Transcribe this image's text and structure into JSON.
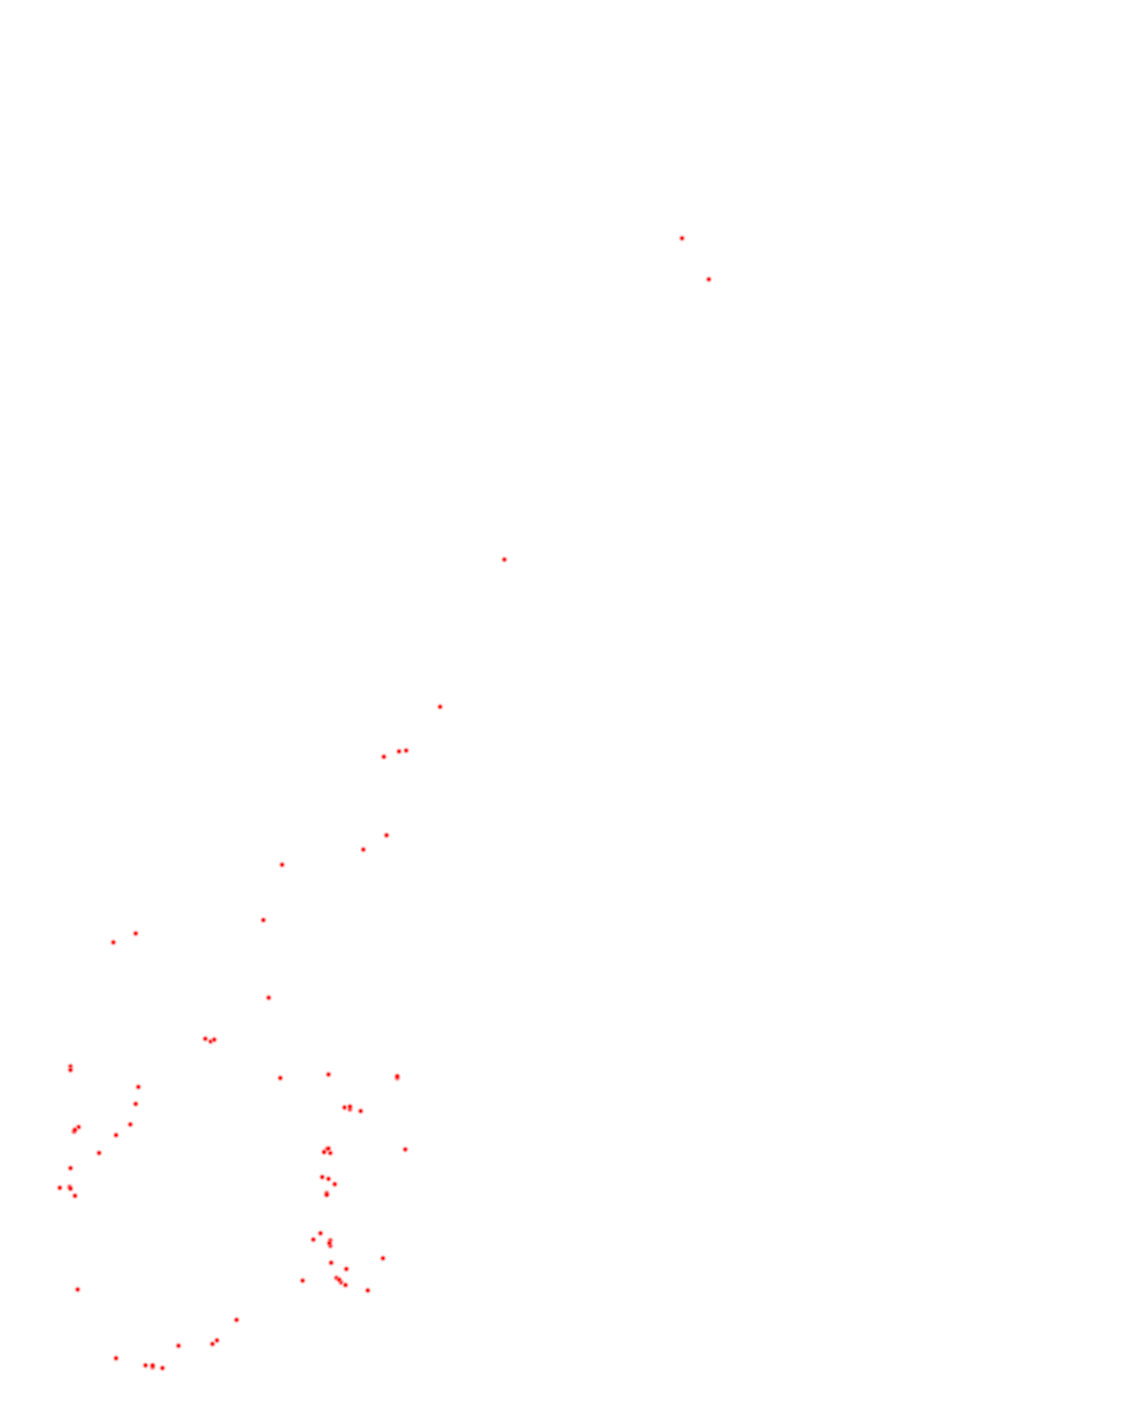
{
  "map": {
    "point_color": "#ff0000",
    "halo_color": "#ffb3b3",
    "points": [
      {
        "id": 1
      },
      {
        "id": 2
      },
      {
        "id": 3
      },
      {
        "id": 4
      },
      {
        "id": 5
      },
      {
        "id": 6
      },
      {
        "id": 7
      },
      {
        "id": 8
      },
      {
        "id": 9
      },
      {
        "id": 10
      },
      {
        "id": 11
      },
      {
        "id": 12
      },
      {
        "id": 13
      },
      {
        "id": 14
      },
      {
        "id": 15
      },
      {
        "id": 16
      },
      {
        "id": 17
      },
      {
        "id": 18
      },
      {
        "id": 19
      },
      {
        "id": 20
      },
      {
        "id": 21
      },
      {
        "id": 22
      },
      {
        "id": 23
      },
      {
        "id": 24
      },
      {
        "id": 25
      },
      {
        "id": 26
      },
      {
        "id": 27
      },
      {
        "id": 28
      },
      {
        "id": 29
      },
      {
        "id": 30
      },
      {
        "id": 31
      },
      {
        "id": 32
      },
      {
        "id": 33
      },
      {
        "id": 34
      },
      {
        "id": 35
      },
      {
        "id": 36
      },
      {
        "id": 37
      },
      {
        "id": 38
      },
      {
        "id": 39
      },
      {
        "id": 40
      },
      {
        "id": 41
      },
      {
        "id": 42
      },
      {
        "id": 43
      },
      {
        "id": 44
      },
      {
        "id": 45
      },
      {
        "id": 46
      },
      {
        "id": 47
      },
      {
        "id": 48
      },
      {
        "id": 49
      },
      {
        "id": 50
      },
      {
        "id": 51
      },
      {
        "id": 52
      },
      {
        "id": 53
      },
      {
        "id": 54
      },
      {
        "id": 55
      },
      {
        "id": 56
      },
      {
        "id": 57
      },
      {
        "id": 58
      },
      {
        "id": 59
      },
      {
        "id": 60
      },
      {
        "id": 61
      },
      {
        "id": 62
      },
      {
        "id": 63
      },
      {
        "id": 64
      },
      {
        "id": 65
      },
      {
        "id": 66
      },
      {
        "id": 67
      },
      {
        "id": 68
      },
      {
        "id": 69
      },
      {
        "id": 70
      },
      {
        "id": 71
      },
      {
        "id": 72
      },
      {
        "id": 73
      },
      {
        "id": 74
      }
    ]
  }
}
